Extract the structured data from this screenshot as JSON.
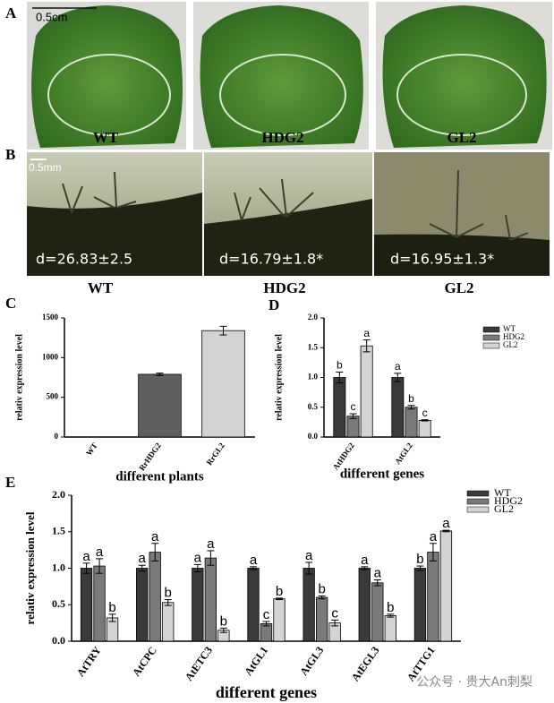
{
  "photo_panels": {
    "A": {
      "label": "A",
      "scale_bar": "0.5cm",
      "captions": [
        "WT",
        "HDG2",
        "GL2"
      ]
    },
    "B": {
      "label": "B",
      "scale_bar": "0.5mm",
      "measurements": [
        "d=26.83±2.5",
        "d=16.79±1.8*",
        "d=16.95±1.3*"
      ],
      "captions": [
        "WT",
        "HDG2",
        "GL2"
      ]
    }
  },
  "chart_data": [
    {
      "type": "bar",
      "label": "C",
      "y_label": "relativ expression level",
      "x_label": "different plants",
      "categories": [
        "WT",
        "RrHDG2",
        "RrGL2"
      ],
      "values": [
        1,
        790,
        1340
      ],
      "errors": [
        0,
        15,
        55
      ],
      "colors": [
        "#3a3a3a",
        "#5f5f5f",
        "#d3d3d3"
      ],
      "ylim": [
        0,
        1500
      ],
      "yticks": [
        0,
        500,
        1000,
        1500
      ]
    },
    {
      "type": "bar",
      "label": "D",
      "y_label": "relativ expression level",
      "x_label": "different genes",
      "categories": [
        "AtHDG2",
        "AtGL2"
      ],
      "series": [
        {
          "name": "WT",
          "color": "#3a3a3a",
          "values": [
            1.0,
            1.0
          ],
          "errors": [
            0.09,
            0.07
          ],
          "labels": [
            "b",
            "a"
          ]
        },
        {
          "name": "HDG2",
          "color": "#7a7a7a",
          "values": [
            0.35,
            0.5
          ],
          "errors": [
            0.04,
            0.03
          ],
          "labels": [
            "c",
            "b"
          ]
        },
        {
          "name": "GL2",
          "color": "#d4d4d4",
          "values": [
            1.53,
            0.28
          ],
          "errors": [
            0.1,
            0.01
          ],
          "labels": [
            "a",
            "c"
          ]
        }
      ],
      "ylim": [
        0,
        2.0
      ],
      "yticks": [
        {
          "value": 0,
          "label": "0.0"
        },
        0.5,
        {
          "value": 1,
          "label": "1.0"
        },
        1.5,
        {
          "value": 2,
          "label": "2.0"
        }
      ]
    },
    {
      "type": "bar",
      "label": "E",
      "y_label": "relativ expression level",
      "x_label": "different genes",
      "categories": [
        "AtTRY",
        "AtCPC",
        "AtETC3",
        "AtGL1",
        "AtGL3",
        "AtEGL3",
        "AtTTG1"
      ],
      "series": [
        {
          "name": "WT",
          "color": "#3a3a3a",
          "values": [
            1.0,
            1.0,
            1.0,
            1.0,
            1.0,
            1.0,
            1.0
          ],
          "errors": [
            0.07,
            0.04,
            0.05,
            0.02,
            0.08,
            0.02,
            0.03
          ],
          "labels": [
            "a",
            "a",
            "a",
            "a",
            "a",
            "a",
            "b"
          ]
        },
        {
          "name": "HDG2",
          "color": "#7a7a7a",
          "values": [
            1.03,
            1.22,
            1.14,
            0.24,
            0.6,
            0.8,
            1.22
          ],
          "errors": [
            0.1,
            0.12,
            0.1,
            0.03,
            0.02,
            0.04,
            0.12
          ],
          "labels": [
            "a",
            "a",
            "a",
            "c",
            "b",
            "a",
            "a"
          ]
        },
        {
          "name": "GL2",
          "color": "#d4d4d4",
          "values": [
            0.32,
            0.53,
            0.15,
            0.58,
            0.25,
            0.35,
            1.51
          ],
          "errors": [
            0.05,
            0.04,
            0.03,
            0.01,
            0.04,
            0.02,
            0.01
          ],
          "labels": [
            "b",
            "b",
            "b",
            "b",
            "c",
            "b",
            "a"
          ]
        }
      ],
      "ylim": [
        0,
        2.0
      ],
      "yticks": [
        {
          "value": 0,
          "label": "0.0"
        },
        0.5,
        {
          "value": 1,
          "label": "1.0"
        },
        1.5,
        {
          "value": 2,
          "label": "2.0"
        }
      ]
    }
  ],
  "watermark": "公众号 · 贵大An刺梨"
}
